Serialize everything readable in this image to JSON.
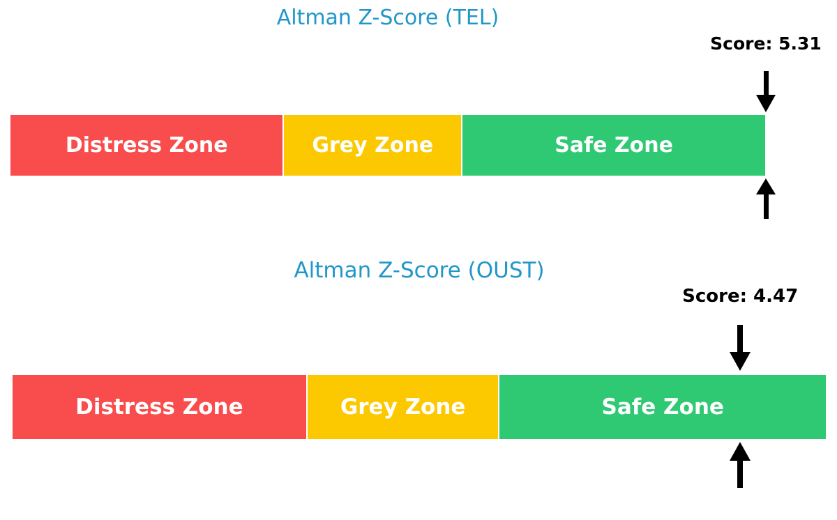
{
  "page": {
    "background_color": "#ffffff"
  },
  "charts": [
    {
      "title": "Altman Z-Score (TEL)",
      "score_label": "Score: 5.31",
      "chart_data": {
        "type": "bar",
        "subtype": "horizontal-stacked-zone-gauge",
        "title": "Altman Z-Score (TEL)",
        "score": 5.31,
        "axis_min": 0,
        "axis_max": 5.0,
        "zones": [
          {
            "label": "Distress Zone",
            "from": 0,
            "to": 1.81,
            "color": "#F94C4C"
          },
          {
            "label": "Grey Zone",
            "from": 1.81,
            "to": 2.99,
            "color": "#FCC800"
          },
          {
            "label": "Safe Zone",
            "from": 2.99,
            "to": 5.0,
            "color": "#30C973"
          }
        ],
        "title_color": "#2197C8",
        "zone_label_color": "#ffffff",
        "score_label_color": "#000000",
        "arrow_color": "#000000",
        "legend": "none",
        "grid": "off"
      }
    },
    {
      "title": "Altman Z-Score (OUST)",
      "score_label": "Score: 4.47",
      "chart_data": {
        "type": "bar",
        "subtype": "horizontal-stacked-zone-gauge",
        "title": "Altman Z-Score (OUST)",
        "score": 4.47,
        "axis_min": 0,
        "axis_max": 5.0,
        "zones": [
          {
            "label": "Distress Zone",
            "from": 0,
            "to": 1.81,
            "color": "#F94C4C"
          },
          {
            "label": "Grey Zone",
            "from": 1.81,
            "to": 2.99,
            "color": "#FCC800"
          },
          {
            "label": "Safe Zone",
            "from": 2.99,
            "to": 5.0,
            "color": "#30C973"
          }
        ],
        "title_color": "#2197C8",
        "zone_label_color": "#ffffff",
        "score_label_color": "#000000",
        "arrow_color": "#000000",
        "legend": "none",
        "grid": "off"
      }
    }
  ]
}
